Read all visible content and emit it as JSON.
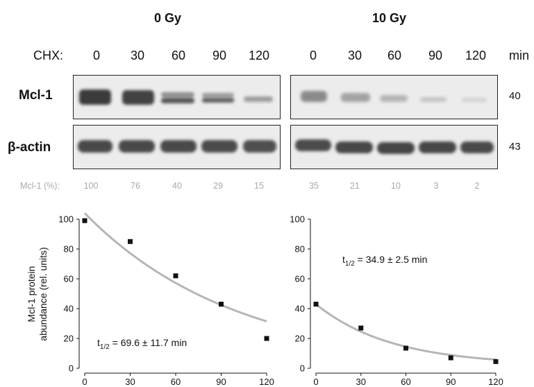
{
  "conditions": [
    "0 Gy",
    "10 Gy"
  ],
  "chx_label": "CHX:",
  "time_unit": "min",
  "lanes": [
    "0",
    "30",
    "60",
    "90",
    "120",
    "0",
    "30",
    "60",
    "90",
    "120"
  ],
  "blots": {
    "mcl1": {
      "label": "Mcl-1",
      "mw": "40"
    },
    "actin": {
      "label": "β-actin",
      "mw": "43"
    }
  },
  "mcl_percent": {
    "label": "Mcl-1 (%):",
    "values": [
      "100",
      "76",
      "40",
      "29",
      "15",
      "35",
      "21",
      "10",
      "3",
      "2"
    ]
  },
  "chart_data": [
    {
      "type": "scatter",
      "title": "",
      "xlabel": "",
      "ylabel": "Mcl-1 protein abundance (rel. units)",
      "x": [
        0,
        30,
        60,
        90,
        120
      ],
      "y": [
        99,
        85,
        62,
        43,
        20
      ],
      "xticks": [
        "0",
        "30",
        "60",
        "90",
        "120"
      ],
      "yticks": [
        "0",
        "20",
        "40",
        "60",
        "80",
        "100"
      ],
      "xlim": [
        0,
        120
      ],
      "ylim": [
        0,
        100
      ],
      "fit": {
        "type": "exponential decay",
        "color": "#b5b5b5",
        "y0": 104,
        "half_life": 69.6
      },
      "annotation": "t1/2 = 69.6 ± 11.7 min",
      "annotation_parts": {
        "prefix": "t",
        "sub": "1/2",
        "rest": " = 69.6 ± 11.7 min"
      }
    },
    {
      "type": "scatter",
      "title": "",
      "xlabel": "",
      "ylabel": "",
      "x": [
        0,
        30,
        60,
        90,
        120
      ],
      "y": [
        43,
        27,
        13.5,
        7,
        4.5
      ],
      "xticks": [
        "0",
        "30",
        "60",
        "90",
        "120"
      ],
      "yticks": [
        "0",
        "20",
        "40",
        "60",
        "80",
        "100"
      ],
      "xlim": [
        0,
        120
      ],
      "ylim": [
        0,
        100
      ],
      "fit": {
        "type": "exponential decay",
        "color": "#b5b5b5",
        "y0": 43,
        "half_life": 34.9,
        "offset": 2
      },
      "annotation": "t1/2 = 34.9 ± 2.5 min",
      "annotation_parts": {
        "prefix": "t",
        "sub": "1/2",
        "rest": " = 34.9 ± 2.5 min"
      }
    }
  ],
  "colors": {
    "marker": "#111111",
    "fit_line": "#b5b5b5",
    "percent_text": "#a8a8a8"
  }
}
